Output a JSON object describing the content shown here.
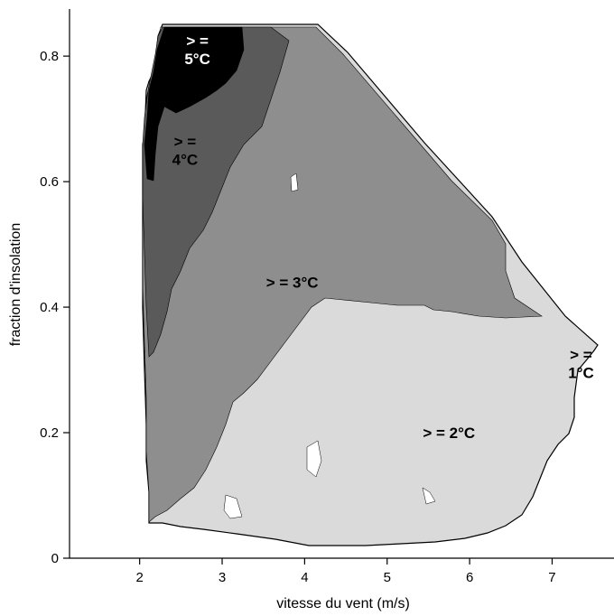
{
  "chart_data": {
    "type": "contour",
    "xlabel": "vitesse du vent (m/s)",
    "ylabel": "fraction d'insolation",
    "xlim": [
      1.15,
      7.75
    ],
    "ylim": [
      0,
      0.875
    ],
    "xticks": [
      "2",
      "3",
      "4",
      "5",
      "6",
      "7"
    ],
    "yticks": [
      "0",
      "0.2",
      "0.4",
      "0.6",
      "0.8"
    ],
    "levels": [
      {
        "label_lines": [
          "> =",
          "1°C"
        ],
        "at": [
          7.35,
          0.31
        ],
        "color": "#d9d9d9",
        "text_color": "#000000"
      },
      {
        "label_lines": [
          "> = 2°C"
        ],
        "at": [
          5.75,
          0.2
        ],
        "color": "#c2c2c2",
        "text_color": "#000000"
      },
      {
        "label_lines": [
          "> = 3°C"
        ],
        "at": [
          3.85,
          0.44
        ],
        "color": "#8c8c8c",
        "text_color": "#000000"
      },
      {
        "label_lines": [
          "> =",
          "4°C"
        ],
        "at": [
          2.55,
          0.65
        ],
        "color": "#4d4d4d",
        "text_color": "#000000"
      },
      {
        "label_lines": [
          "> =",
          "5°C"
        ],
        "at": [
          2.7,
          0.81
        ],
        "color": "#000000",
        "text_color": "#ffffff"
      }
    ]
  }
}
